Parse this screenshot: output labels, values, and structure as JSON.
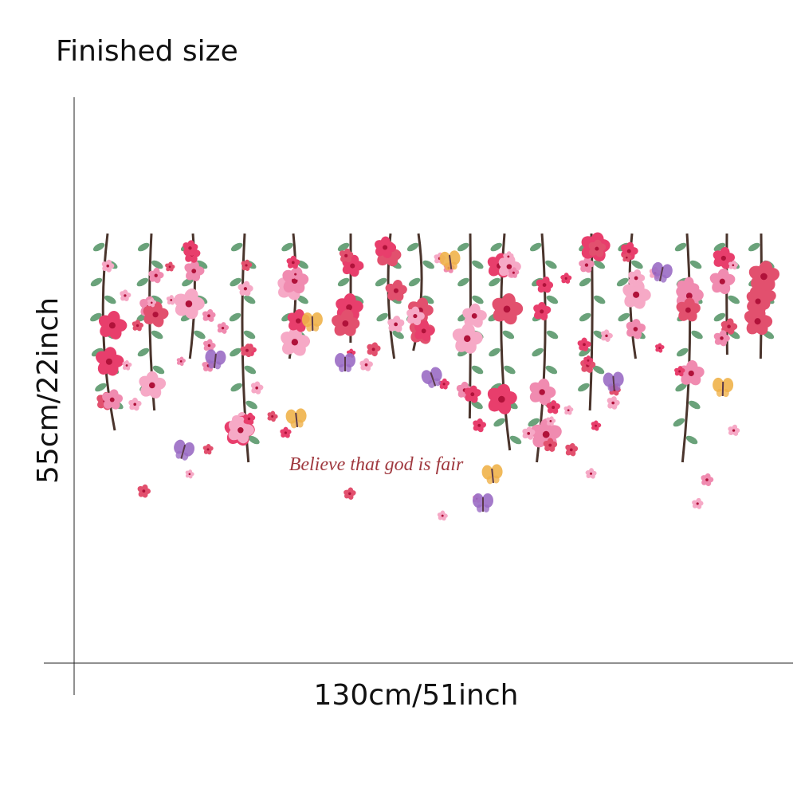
{
  "title": "Finished size",
  "height_label": "55cm/22inch",
  "width_label": "130cm/51inch",
  "quote": "Believe that god is fair"
}
